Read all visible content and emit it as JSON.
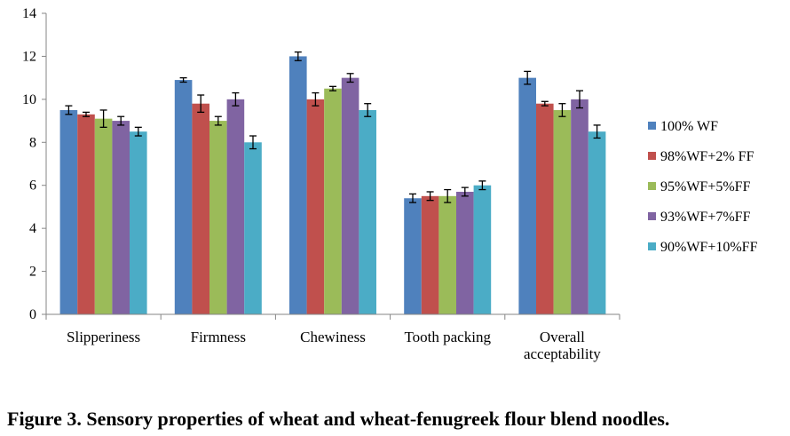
{
  "caption": "Figure 3. Sensory properties of wheat and wheat-fenugreek flour blend noodles.",
  "chart_data": {
    "type": "bar",
    "title": "",
    "xlabel": "",
    "ylabel": "",
    "ylim": [
      0,
      14
    ],
    "yticks": [
      0,
      2,
      4,
      6,
      8,
      10,
      12,
      14
    ],
    "grid": false,
    "legend_position": "right",
    "categories": [
      [
        "Slipperiness"
      ],
      [
        "Firmness"
      ],
      [
        "Chewiness"
      ],
      [
        "Tooth packing"
      ],
      [
        "Overall",
        "acceptability"
      ]
    ],
    "series": [
      {
        "name": "100% WF",
        "color": "#4F81BD",
        "values": [
          9.5,
          10.9,
          12.0,
          5.4,
          11.0
        ],
        "errors": [
          0.2,
          0.1,
          0.2,
          0.2,
          0.3
        ]
      },
      {
        "name": "98%WF+2% FF",
        "color": "#C0504D",
        "values": [
          9.3,
          9.8,
          10.0,
          5.5,
          9.8
        ],
        "errors": [
          0.1,
          0.4,
          0.3,
          0.2,
          0.1
        ]
      },
      {
        "name": "95%WF+5%FF",
        "color": "#9BBB59",
        "values": [
          9.1,
          9.0,
          10.5,
          5.5,
          9.5
        ],
        "errors": [
          0.4,
          0.2,
          0.1,
          0.3,
          0.3
        ]
      },
      {
        "name": "93%WF+7%FF",
        "color": "#8064A2",
        "values": [
          9.0,
          10.0,
          11.0,
          5.7,
          10.0
        ],
        "errors": [
          0.2,
          0.3,
          0.2,
          0.2,
          0.4
        ]
      },
      {
        "name": "90%WF+10%FF",
        "color": "#4BACC6",
        "values": [
          8.5,
          8.0,
          9.5,
          6.0,
          8.5
        ],
        "errors": [
          0.2,
          0.3,
          0.3,
          0.2,
          0.3
        ]
      }
    ]
  }
}
